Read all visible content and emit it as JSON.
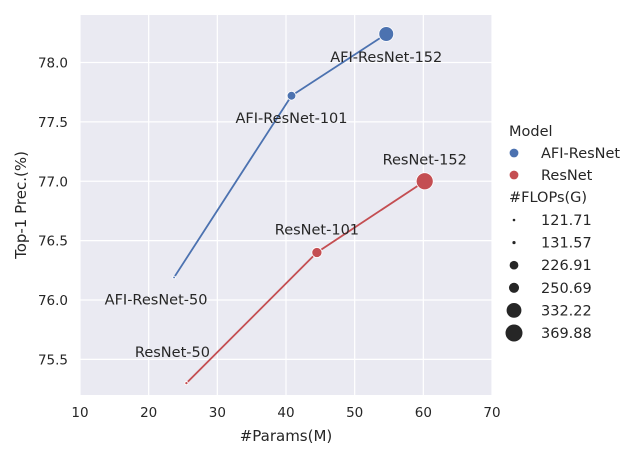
{
  "chart_data": {
    "type": "scatter",
    "xlabel": "#Params(M)",
    "ylabel": "Top-1 Prec.(%)",
    "xlim": [
      10,
      70
    ],
    "ylim": [
      75.2,
      78.4
    ],
    "x_ticks": [
      10,
      20,
      30,
      40,
      50,
      60,
      70
    ],
    "y_ticks": [
      75.5,
      76.0,
      76.5,
      77.0,
      77.5,
      78.0
    ],
    "x_tick_labels": [
      "10",
      "20",
      "30",
      "40",
      "50",
      "60",
      "70"
    ],
    "y_tick_labels": [
      "75.5",
      "76.0",
      "76.5",
      "77.0",
      "77.5",
      "78.0"
    ],
    "grid": true,
    "background": "#EAEAF2",
    "series": [
      {
        "name": "AFI-ResNet",
        "color": "#4C72B0",
        "points": [
          {
            "label": "AFI-ResNet-50",
            "params": 23.7,
            "prec": 76.19,
            "flops": 121.71
          },
          {
            "label": "AFI-ResNet-101",
            "params": 40.8,
            "prec": 77.72,
            "flops": 226.91
          },
          {
            "label": "AFI-ResNet-152",
            "params": 54.6,
            "prec": 78.24,
            "flops": 332.22
          }
        ]
      },
      {
        "name": "ResNet",
        "color": "#C44E52",
        "points": [
          {
            "label": "ResNet-50",
            "params": 25.5,
            "prec": 75.3,
            "flops": 131.57
          },
          {
            "label": "ResNet-101",
            "params": 44.5,
            "prec": 76.4,
            "flops": 250.69
          },
          {
            "label": "ResNet-152",
            "params": 60.2,
            "prec": 77.0,
            "flops": 369.88
          }
        ]
      }
    ],
    "legend": {
      "placement": "right",
      "hue_title": "Model",
      "hue_entries": [
        "AFI-ResNet",
        "ResNet"
      ],
      "size_title": "#FLOPs(G)",
      "size_entries": [
        "121.71",
        "131.57",
        "226.91",
        "250.69",
        "332.22",
        "369.88"
      ]
    }
  }
}
